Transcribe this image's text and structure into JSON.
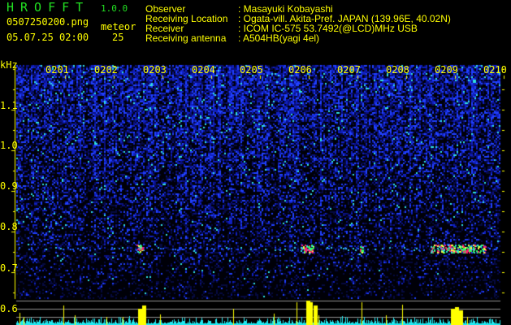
{
  "header": {
    "app_title": "HROFFT",
    "version": "1.0.0",
    "filename": "0507250200.png",
    "datetime": "05.07.25 02:00",
    "meteor_label": "meteor",
    "meteor_count": "25"
  },
  "info": [
    {
      "label": "Observer",
      "value": ": Masayuki Kobayashi"
    },
    {
      "label": "Receiving Location",
      "value": ": Ogata-vill. Akita-Pref. JAPAN (139.96E, 40.02N)"
    },
    {
      "label": "Receiver",
      "value": ": ICOM IC-575 53.7492(@LCD)MHz USB"
    },
    {
      "label": "Receiving antenna",
      "value": ": A504HB(yagi 4el)"
    }
  ],
  "spectrogram": {
    "y_unit": "kHz",
    "y_ticks": [
      "1.1",
      "1.0",
      "0.9",
      "0.8",
      "0.7",
      "0.6"
    ],
    "time_labels": [
      "0201",
      "0202",
      "0203",
      "0204",
      "0205",
      "0206",
      "0207",
      "0208",
      "0209",
      "0210"
    ],
    "colors": {
      "background": "#000010",
      "noise": "#1a2cff",
      "echo_hot": "#ff2070",
      "histogram": "#22e8f0",
      "histogram_peak": "#ffff00",
      "axis": "#ffff00"
    }
  }
}
